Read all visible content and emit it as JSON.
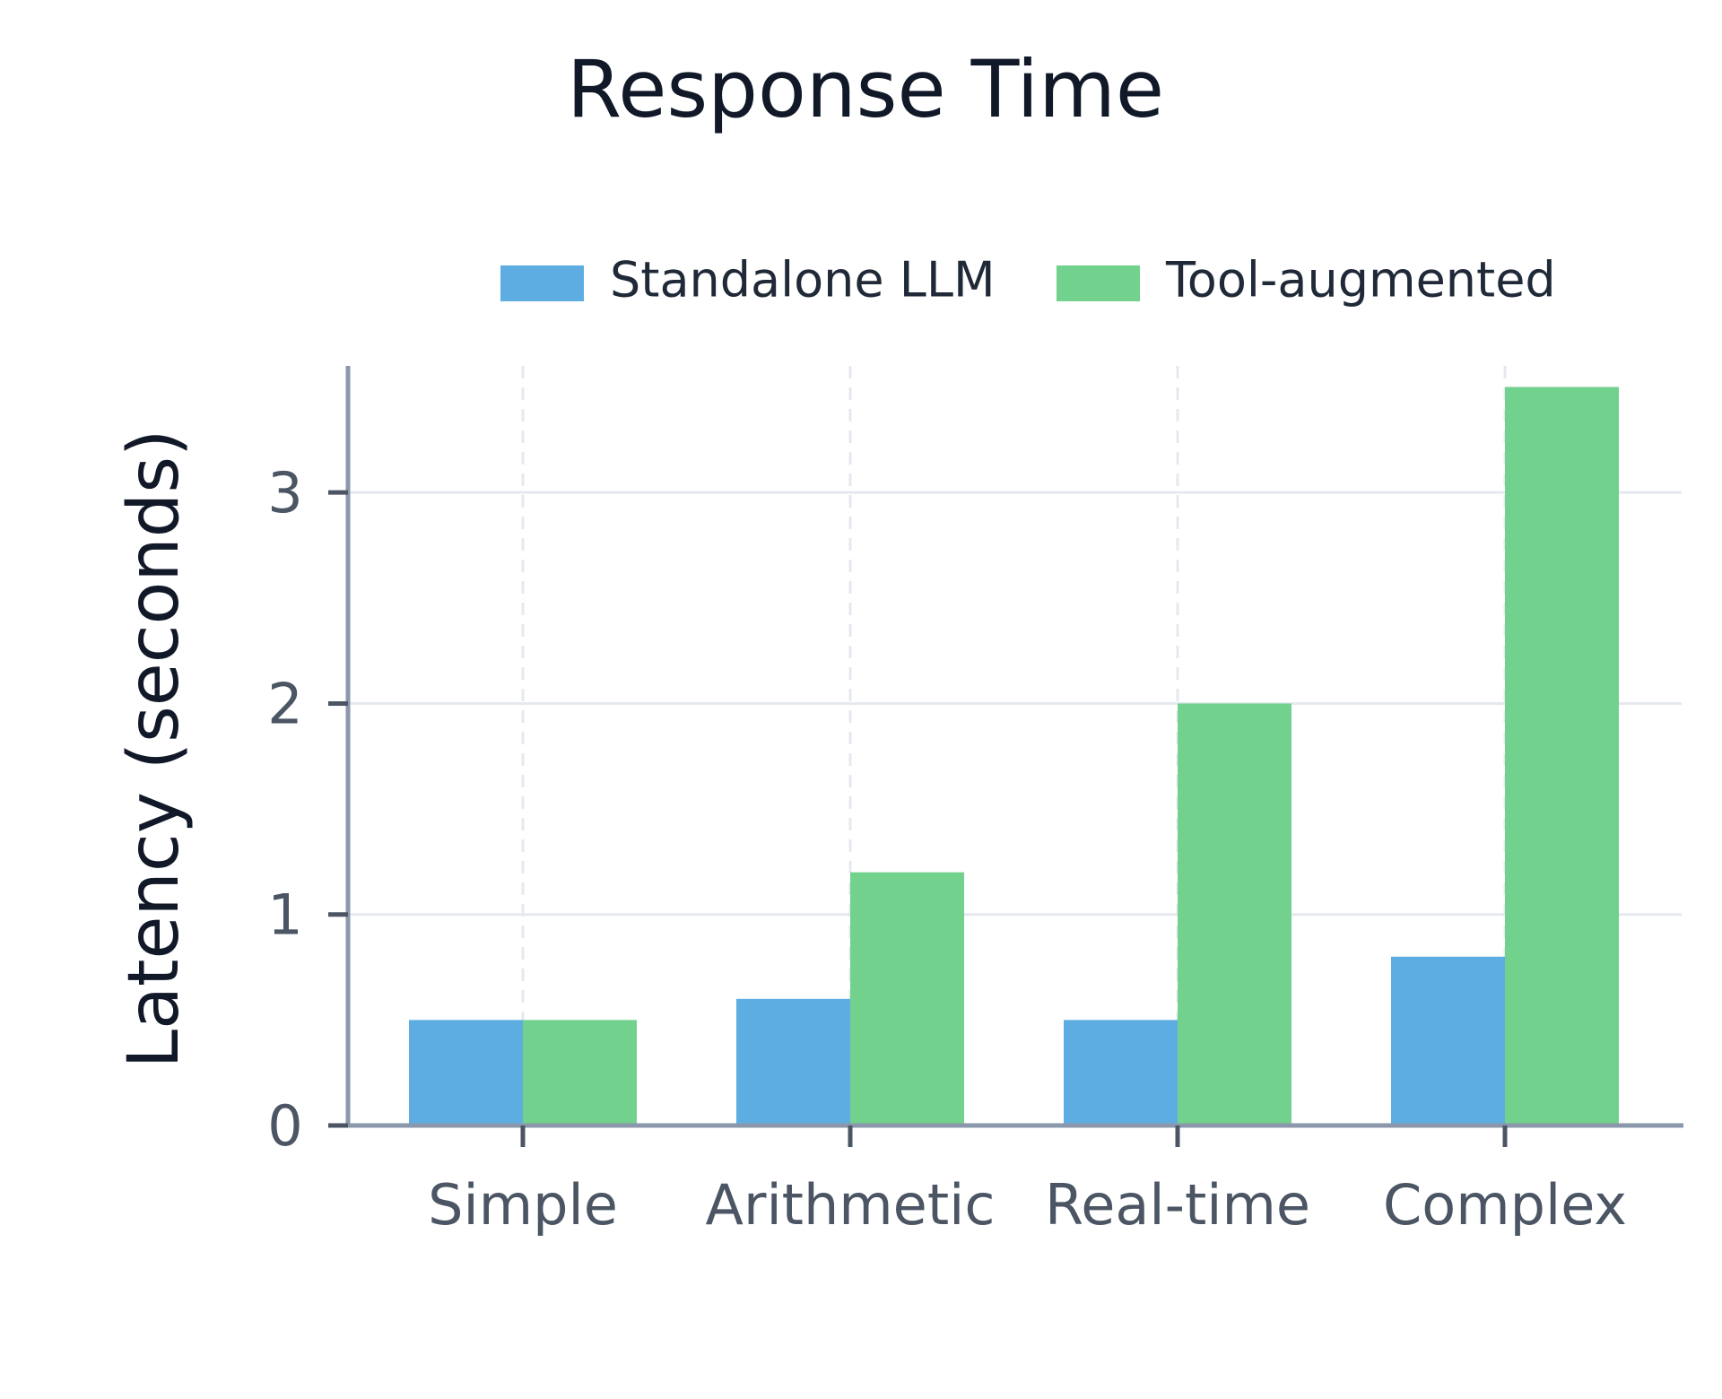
{
  "chart_data": {
    "type": "bar",
    "title": "Response Time",
    "xlabel": "",
    "ylabel": "Latency (seconds)",
    "categories": [
      "Simple",
      "Arithmetic",
      "Real-time",
      "Complex"
    ],
    "series": [
      {
        "name": "Standalone LLM",
        "values": [
          0.5,
          0.6,
          0.5,
          0.8
        ],
        "color": "#5DADE2"
      },
      {
        "name": "Tool-augmented",
        "values": [
          0.5,
          1.2,
          2.0,
          3.5
        ],
        "color": "#72D18D"
      }
    ],
    "yticks": [
      0,
      1,
      2,
      3
    ],
    "ylim": [
      0,
      3.6
    ],
    "grid": true,
    "legend_position": "top"
  }
}
